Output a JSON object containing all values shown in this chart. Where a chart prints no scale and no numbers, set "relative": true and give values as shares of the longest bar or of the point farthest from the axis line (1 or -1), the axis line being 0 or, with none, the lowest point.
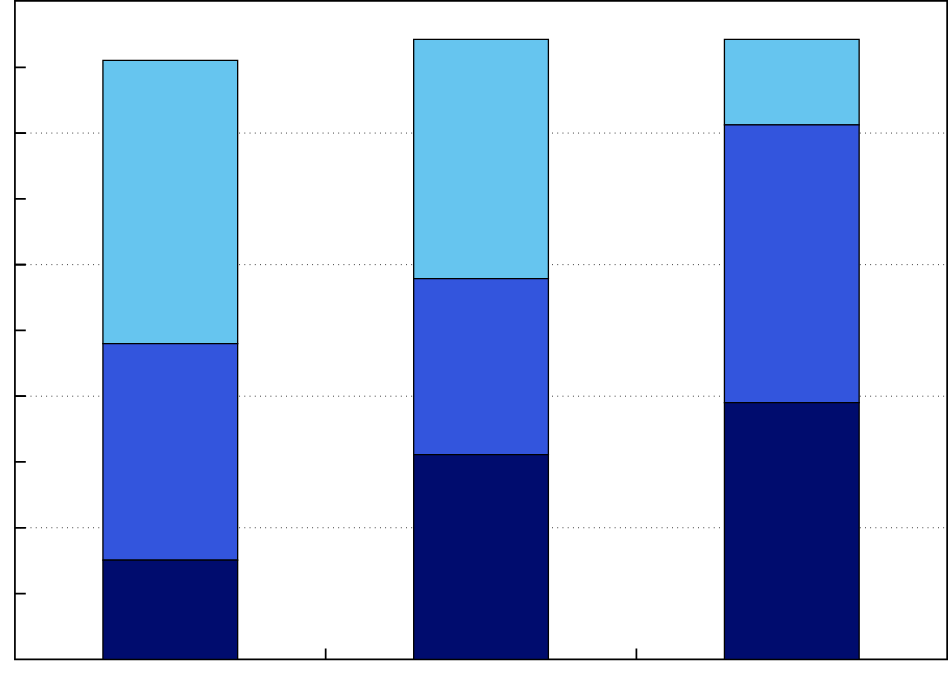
{
  "chart_data": {
    "type": "bar",
    "stacked": true,
    "relative": true,
    "grid": "y",
    "categories": [
      null,
      null,
      null
    ],
    "series": [
      {
        "color": "#000c6e",
        "values": [
          0.16,
          0.33,
          0.414
        ]
      },
      {
        "color": "#3355dd",
        "values": [
          0.349,
          0.284,
          0.448
        ]
      },
      {
        "color": "#66c5ef",
        "values": [
          0.457,
          0.386,
          0.138
        ]
      }
    ]
  }
}
